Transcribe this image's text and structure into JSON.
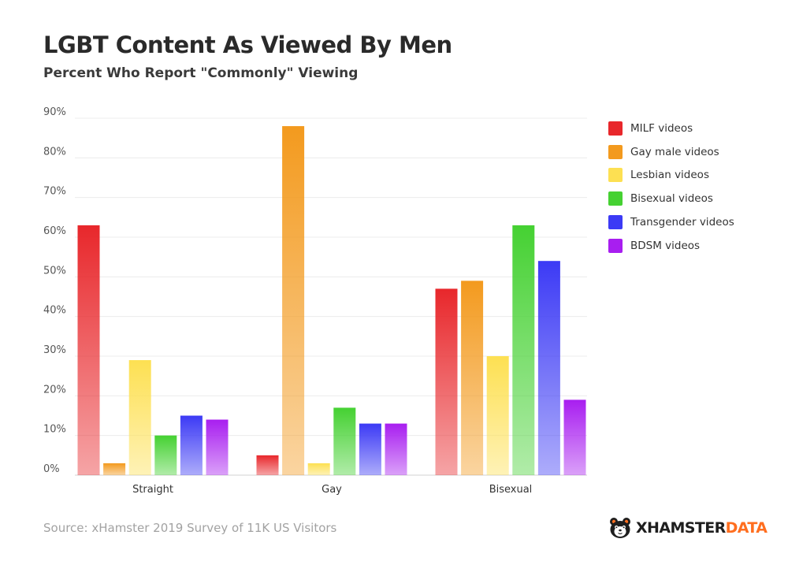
{
  "title": "LGBT Content As Viewed By Men",
  "subtitle": "Percent Who Report \"Commonly\" Viewing",
  "source": "Source: xHamster 2019 Survey of 11K US Visitors",
  "brand": {
    "part1": "XHAMSTER",
    "part2": "DATA",
    "logo_icon": "hamster-face-icon"
  },
  "colors": {
    "MILF videos": "#e8272b",
    "Gay male videos": "#f39a1e",
    "Lesbian videos": "#fde052",
    "Bisexual videos": "#45d132",
    "Transgender videos": "#3c3af5",
    "BDSM videos": "#a81ef0",
    "brand_accent": "#ff6e1f"
  },
  "chart_data": {
    "type": "bar",
    "title": "LGBT Content As Viewed By Men",
    "subtitle": "Percent Who Report \"Commonly\" Viewing",
    "categories": [
      "Straight",
      "Gay",
      "Bisexual"
    ],
    "series": [
      {
        "name": "MILF videos",
        "color": "#e8272b",
        "values": [
          63,
          5,
          47
        ]
      },
      {
        "name": "Gay male videos",
        "color": "#f39a1e",
        "values": [
          3,
          88,
          49
        ]
      },
      {
        "name": "Lesbian videos",
        "color": "#fde052",
        "values": [
          29,
          3,
          30
        ]
      },
      {
        "name": "Bisexual videos",
        "color": "#45d132",
        "values": [
          10,
          17,
          63
        ]
      },
      {
        "name": "Transgender videos",
        "color": "#3c3af5",
        "values": [
          15,
          13,
          54
        ]
      },
      {
        "name": "BDSM videos",
        "color": "#a81ef0",
        "values": [
          14,
          13,
          19
        ]
      }
    ],
    "yticks": [
      "0%",
      "10%",
      "20%",
      "30%",
      "40%",
      "50%",
      "60%",
      "70%",
      "80%",
      "90%"
    ],
    "ylim": [
      0,
      90
    ],
    "grid": true,
    "legend_position": "right"
  }
}
